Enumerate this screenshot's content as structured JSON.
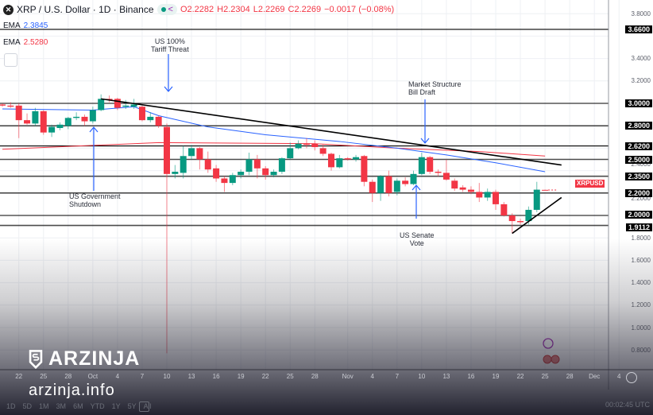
{
  "header": {
    "symbol_icon": "xrp-logo-icon",
    "title": "XRP / U.S. Dollar · 1D · Binance",
    "ohlc": {
      "o": "O2.2282",
      "h": "H2.2304",
      "l": "L2.2269",
      "c": "C2.2269",
      "change": "−0.0017 (−0.08%)"
    }
  },
  "indicators": [
    {
      "label": "EMA",
      "value": "2.3845",
      "color": "#2962ff"
    },
    {
      "label": "EMA",
      "value": "2.5280",
      "color": "#f23645"
    }
  ],
  "annotations": [
    {
      "text": [
        "US 100%",
        "Tariff Threat"
      ],
      "direction": "down"
    },
    {
      "text": [
        "US Government",
        "Shutdown"
      ],
      "direction": "up"
    },
    {
      "text": [
        "Market Structure",
        "Bill Draft"
      ],
      "direction": "down"
    },
    {
      "text": [
        "US Senate",
        "Vote"
      ],
      "direction": "up"
    }
  ],
  "symbol_tag": "XRPUSD",
  "watermark": {
    "brand": "ARZINJA",
    "site": "arzinja.info"
  },
  "timeframes": [
    "1D",
    "5D",
    "1M",
    "3M",
    "6M",
    "YTD",
    "1Y",
    "5Y",
    "All"
  ],
  "clock": "00:02:45 UTC",
  "colors": {
    "up": "#089981",
    "down": "#f23645",
    "ema_fast": "#2962ff",
    "ema_slow": "#f23645",
    "level": "#000000"
  },
  "chart_data": {
    "type": "candlestick",
    "ylim": [
      0.7,
      3.85
    ],
    "grid": true,
    "y_ticks": [
      "3.8000",
      "3.4000",
      "3.2000",
      "2.4000",
      "2.2000",
      "1.8000",
      "1.6000",
      "1.4000",
      "1.2000",
      "1.0000",
      "0.8000"
    ],
    "y_tick_values": [
      3.8,
      3.4,
      3.2,
      2.4,
      2.2,
      1.8,
      1.6,
      1.4,
      1.2,
      1.0,
      0.8
    ],
    "x_ticks": [
      [
        "Sep 22",
        "22"
      ],
      [
        "Sep 25",
        "25"
      ],
      [
        "Sep 28",
        "28"
      ],
      [
        "Oct 1",
        "Oct"
      ],
      [
        "Oct 4",
        "4"
      ],
      [
        "Oct 7",
        "7"
      ],
      [
        "Oct 10",
        "10"
      ],
      [
        "Oct 13",
        "13"
      ],
      [
        "Oct 16",
        "16"
      ],
      [
        "Oct 19",
        "19"
      ],
      [
        "Oct 22",
        "22"
      ],
      [
        "Oct 25",
        "25"
      ],
      [
        "Oct 28",
        "28"
      ],
      [
        "Nov 1",
        "Nov"
      ],
      [
        "Nov 4",
        "4"
      ],
      [
        "Nov 7",
        "7"
      ],
      [
        "Nov 10",
        "10"
      ],
      [
        "Nov 13",
        "13"
      ],
      [
        "Nov 16",
        "16"
      ],
      [
        "Nov 19",
        "19"
      ],
      [
        "Nov 22",
        "22"
      ],
      [
        "Nov 25",
        "25"
      ],
      [
        "Nov 28",
        "28"
      ],
      [
        "Dec 1",
        "Dec"
      ],
      [
        "Dec 4",
        "4"
      ]
    ],
    "levels": [
      "3.6600",
      "3.0000",
      "2.8000",
      "2.6200",
      "2.5000",
      "2.3500",
      "2.2000",
      "2.0000",
      "1.9112"
    ],
    "candles_columns": [
      "date",
      "open",
      "high",
      "low",
      "close"
    ],
    "candles": [
      [
        "Sep 20",
        2.99,
        3.0,
        2.97,
        2.98
      ],
      [
        "Sep 21",
        2.98,
        3.01,
        2.96,
        2.97
      ],
      [
        "Sep 22",
        2.98,
        3.0,
        2.69,
        2.85
      ],
      [
        "Sep 23",
        2.85,
        2.91,
        2.81,
        2.82
      ],
      [
        "Sep 24",
        2.82,
        2.96,
        2.8,
        2.93
      ],
      [
        "Sep 25",
        2.93,
        2.94,
        2.72,
        2.74
      ],
      [
        "Sep 26",
        2.74,
        2.81,
        2.7,
        2.79
      ],
      [
        "Sep 27",
        2.78,
        2.83,
        2.76,
        2.81
      ],
      [
        "Sep 28",
        2.8,
        2.88,
        2.77,
        2.87
      ],
      [
        "Sep 29",
        2.87,
        2.92,
        2.85,
        2.88
      ],
      [
        "Sep 30",
        2.88,
        2.9,
        2.8,
        2.84
      ],
      [
        "Oct 1",
        2.84,
        2.97,
        2.82,
        2.94
      ],
      [
        "Oct 2",
        2.94,
        3.08,
        2.93,
        3.04
      ],
      [
        "Oct 3",
        3.04,
        3.07,
        3.01,
        3.03
      ],
      [
        "Oct 4",
        3.04,
        3.05,
        2.94,
        2.96
      ],
      [
        "Oct 5",
        2.97,
        3.03,
        2.95,
        2.98
      ],
      [
        "Oct 6",
        2.97,
        3.04,
        2.95,
        2.99
      ],
      [
        "Oct 7",
        2.97,
        2.98,
        2.84,
        2.85
      ],
      [
        "Oct 8",
        2.85,
        2.92,
        2.83,
        2.88
      ],
      [
        "Oct 9",
        2.88,
        2.89,
        2.78,
        2.8
      ],
      [
        "Oct 10",
        2.79,
        2.82,
        0.77,
        2.37
      ],
      [
        "Oct 11",
        2.37,
        2.45,
        2.33,
        2.39
      ],
      [
        "Oct 12",
        2.38,
        2.62,
        2.33,
        2.53
      ],
      [
        "Oct 13",
        2.53,
        2.63,
        2.5,
        2.6
      ],
      [
        "Oct 14",
        2.6,
        2.61,
        2.41,
        2.5
      ],
      [
        "Oct 15",
        2.5,
        2.57,
        2.38,
        2.41
      ],
      [
        "Oct 16",
        2.42,
        2.45,
        2.3,
        2.33
      ],
      [
        "Oct 17",
        2.33,
        2.35,
        2.21,
        2.29
      ],
      [
        "Oct 18",
        2.29,
        2.38,
        2.27,
        2.36
      ],
      [
        "Oct 19",
        2.36,
        2.41,
        2.33,
        2.39
      ],
      [
        "Oct 20",
        2.39,
        2.56,
        2.36,
        2.5
      ],
      [
        "Oct 21",
        2.5,
        2.54,
        2.33,
        2.42
      ],
      [
        "Oct 22",
        2.42,
        2.44,
        2.32,
        2.36
      ],
      [
        "Oct 23",
        2.36,
        2.41,
        2.34,
        2.39
      ],
      [
        "Oct 24",
        2.39,
        2.52,
        2.37,
        2.51
      ],
      [
        "Oct 25",
        2.51,
        2.65,
        2.5,
        2.6
      ],
      [
        "Oct 26",
        2.6,
        2.67,
        2.59,
        2.64
      ],
      [
        "Oct 27",
        2.64,
        2.69,
        2.6,
        2.63
      ],
      [
        "Oct 28",
        2.64,
        2.67,
        2.58,
        2.61
      ],
      [
        "Oct 29",
        2.6,
        2.63,
        2.53,
        2.55
      ],
      [
        "Oct 30",
        2.55,
        2.56,
        2.4,
        2.43
      ],
      [
        "Oct 31",
        2.43,
        2.54,
        2.42,
        2.51
      ],
      [
        "Nov 1",
        2.51,
        2.52,
        2.49,
        2.5
      ],
      [
        "Nov 2",
        2.5,
        2.54,
        2.48,
        2.52
      ],
      [
        "Nov 3",
        2.53,
        2.54,
        2.26,
        2.3
      ],
      [
        "Nov 4",
        2.3,
        2.32,
        2.12,
        2.2
      ],
      [
        "Nov 5",
        2.2,
        2.36,
        2.13,
        2.35
      ],
      [
        "Nov 6",
        2.35,
        2.4,
        2.17,
        2.2
      ],
      [
        "Nov 7",
        2.21,
        2.33,
        2.18,
        2.31
      ],
      [
        "Nov 8",
        2.31,
        2.34,
        2.26,
        2.28
      ],
      [
        "Nov 9",
        2.28,
        2.4,
        2.27,
        2.37
      ],
      [
        "Nov 10",
        2.37,
        2.56,
        2.36,
        2.52
      ],
      [
        "Nov 11",
        2.52,
        2.53,
        2.37,
        2.39
      ],
      [
        "Nov 12",
        2.39,
        2.41,
        2.35,
        2.38
      ],
      [
        "Nov 13",
        2.38,
        2.5,
        2.31,
        2.32
      ],
      [
        "Nov 14",
        2.31,
        2.33,
        2.22,
        2.24
      ],
      [
        "Nov 15",
        2.25,
        2.27,
        2.21,
        2.23
      ],
      [
        "Nov 16",
        2.23,
        2.26,
        2.19,
        2.21
      ],
      [
        "Nov 17",
        2.21,
        2.29,
        2.12,
        2.16
      ],
      [
        "Nov 18",
        2.16,
        2.24,
        2.13,
        2.21
      ],
      [
        "Nov 19",
        2.21,
        2.23,
        2.05,
        2.1
      ],
      [
        "Nov 20",
        2.1,
        2.12,
        1.99,
        2.0
      ],
      [
        "Nov 21",
        2.0,
        2.02,
        1.84,
        1.95
      ],
      [
        "Nov 22",
        1.95,
        1.97,
        1.92,
        1.94
      ],
      [
        "Nov 23",
        1.95,
        2.08,
        1.92,
        2.05
      ],
      [
        "Nov 24",
        2.05,
        2.3,
        2.03,
        2.23
      ],
      [
        "Nov 25",
        2.2282,
        2.2304,
        2.2269,
        2.2269
      ]
    ],
    "ema_fast": [
      [
        "Sep 20",
        2.95
      ],
      [
        "Oct 1",
        2.94
      ],
      [
        "Oct 6",
        2.97
      ],
      [
        "Oct 9",
        2.89
      ],
      [
        "Oct 15",
        2.79
      ],
      [
        "Oct 22",
        2.72
      ],
      [
        "Oct 31",
        2.66
      ],
      [
        "Nov 7",
        2.6
      ],
      [
        "Nov 13",
        2.54
      ],
      [
        "Nov 19",
        2.47
      ],
      [
        "Nov 25",
        2.39
      ]
    ],
    "ema_slow": [
      [
        "Sep 20",
        2.59
      ],
      [
        "Oct 9",
        2.65
      ],
      [
        "Oct 28",
        2.64
      ],
      [
        "Nov 7",
        2.6
      ],
      [
        "Nov 17",
        2.57
      ],
      [
        "Nov 25",
        2.53
      ]
    ],
    "trendlines": [
      [
        [
          "Oct 2",
          3.04
        ],
        [
          "Nov 27",
          2.45
        ]
      ],
      [
        [
          "Nov 21",
          1.84
        ],
        [
          "Nov 27",
          2.16
        ]
      ]
    ],
    "annotation_points": [
      [
        "Oct 10",
        3.15
      ],
      [
        "Oct 1",
        2.82
      ],
      [
        "Nov 10",
        2.58
      ],
      [
        "Nov 9",
        2.3
      ]
    ]
  }
}
